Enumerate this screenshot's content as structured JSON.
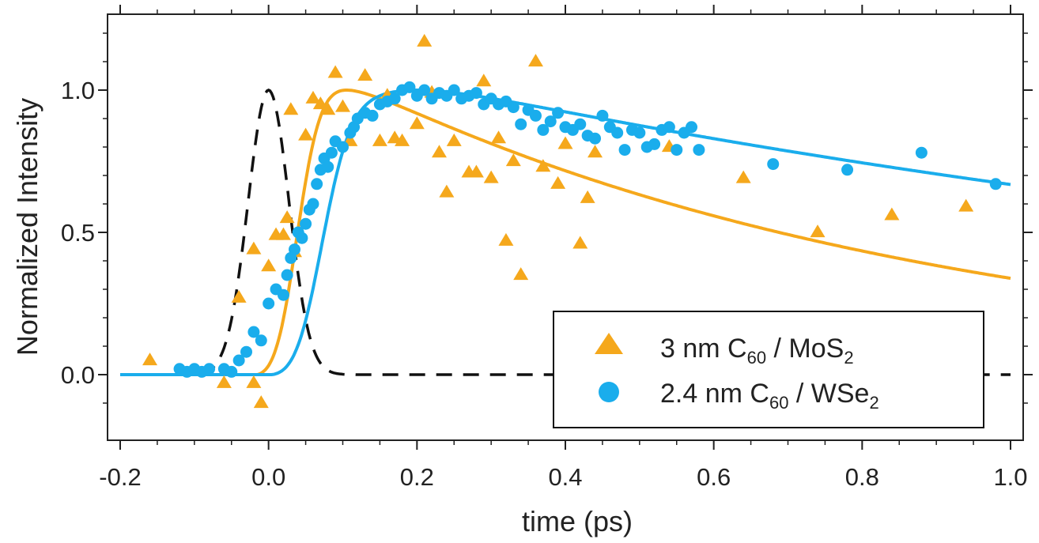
{
  "chart_data": {
    "type": "scatter",
    "xlabel": "time (ps)",
    "ylabel": "Normalized Intensity",
    "xlim": [
      -0.2,
      1.0
    ],
    "ylim": [
      -0.2,
      1.25
    ],
    "x_ticks": [
      -0.2,
      0.0,
      0.2,
      0.4,
      0.6,
      0.8,
      1.0
    ],
    "x_tick_labels": [
      "-0.2",
      "0.0",
      "0.2",
      "0.4",
      "0.6",
      "0.8",
      "1.0"
    ],
    "y_ticks": [
      0.0,
      0.5,
      1.0
    ],
    "y_tick_labels": [
      "0.0",
      "0.5",
      "1.0"
    ],
    "grid": false,
    "legend_position": "bottom-right",
    "colors": {
      "orange": "#F5A81C",
      "blue": "#1AADEC",
      "dashed": "#111111"
    },
    "series": [
      {
        "name": "3 nm C60 / MoS2",
        "legend": {
          "main": "3 nm C",
          "sub1": "60",
          "mid": " / MoS",
          "sub2": "2"
        },
        "marker": "triangle",
        "color": "#F5A81C",
        "x": [
          -0.16,
          -0.06,
          -0.04,
          -0.02,
          -0.02,
          -0.01,
          0.0,
          0.01,
          0.02,
          0.025,
          0.03,
          0.035,
          0.05,
          0.06,
          0.07,
          0.08,
          0.09,
          0.1,
          0.11,
          0.13,
          0.15,
          0.16,
          0.17,
          0.18,
          0.2,
          0.21,
          0.22,
          0.23,
          0.24,
          0.25,
          0.27,
          0.28,
          0.29,
          0.3,
          0.31,
          0.32,
          0.33,
          0.34,
          0.36,
          0.37,
          0.39,
          0.4,
          0.42,
          0.43,
          0.44,
          0.54,
          0.64,
          0.74,
          0.84,
          0.94
        ],
        "y": [
          0.05,
          -0.03,
          0.27,
          0.44,
          -0.03,
          -0.1,
          0.38,
          0.49,
          0.49,
          0.55,
          0.93,
          0.43,
          0.84,
          0.97,
          0.95,
          0.93,
          1.06,
          0.94,
          0.82,
          1.05,
          0.82,
          0.98,
          0.83,
          0.82,
          0.88,
          1.17,
          0.99,
          0.78,
          0.64,
          0.82,
          0.71,
          0.71,
          1.03,
          0.69,
          0.83,
          0.47,
          0.75,
          0.35,
          1.1,
          0.73,
          0.67,
          0.81,
          0.46,
          0.62,
          0.78,
          0.8,
          0.69,
          0.5,
          0.56,
          0.59
        ]
      },
      {
        "name": "2.4 nm C60 / WSe2",
        "legend": {
          "main": "2.4 nm C",
          "sub1": "60",
          "mid": " / WSe",
          "sub2": "2"
        },
        "marker": "circle",
        "color": "#1AADEC",
        "x": [
          -0.12,
          -0.11,
          -0.1,
          -0.09,
          -0.08,
          -0.06,
          -0.05,
          -0.04,
          -0.03,
          -0.02,
          -0.01,
          0.0,
          0.01,
          0.02,
          0.025,
          0.03,
          0.035,
          0.04,
          0.045,
          0.05,
          0.055,
          0.06,
          0.065,
          0.07,
          0.075,
          0.08,
          0.085,
          0.09,
          0.1,
          0.11,
          0.115,
          0.12,
          0.13,
          0.14,
          0.15,
          0.16,
          0.17,
          0.18,
          0.19,
          0.2,
          0.21,
          0.22,
          0.23,
          0.24,
          0.25,
          0.26,
          0.27,
          0.28,
          0.29,
          0.3,
          0.31,
          0.32,
          0.33,
          0.34,
          0.35,
          0.36,
          0.37,
          0.38,
          0.39,
          0.4,
          0.41,
          0.42,
          0.43,
          0.44,
          0.45,
          0.46,
          0.47,
          0.48,
          0.49,
          0.5,
          0.51,
          0.52,
          0.53,
          0.54,
          0.55,
          0.56,
          0.57,
          0.58,
          0.68,
          0.78,
          0.88,
          0.98
        ],
        "y": [
          0.02,
          0.01,
          0.02,
          0.01,
          0.02,
          0.02,
          0.01,
          0.05,
          0.08,
          0.15,
          0.12,
          0.25,
          0.3,
          0.28,
          0.35,
          0.41,
          0.44,
          0.5,
          0.48,
          0.53,
          0.58,
          0.6,
          0.67,
          0.72,
          0.76,
          0.73,
          0.78,
          0.82,
          0.8,
          0.85,
          0.87,
          0.9,
          0.92,
          0.91,
          0.95,
          0.96,
          0.97,
          1.0,
          1.01,
          0.98,
          1.0,
          0.97,
          0.99,
          0.98,
          1.0,
          0.97,
          0.98,
          0.99,
          0.95,
          0.97,
          0.95,
          0.96,
          0.94,
          0.88,
          0.93,
          0.91,
          0.86,
          0.89,
          0.92,
          0.87,
          0.86,
          0.88,
          0.84,
          0.83,
          0.91,
          0.87,
          0.85,
          0.79,
          0.86,
          0.85,
          0.8,
          0.81,
          0.86,
          0.87,
          0.79,
          0.85,
          0.87,
          0.79,
          0.74,
          0.72,
          0.78,
          0.67
        ]
      }
    ],
    "fit_curves": [
      {
        "series": "3 nm C60 / MoS2",
        "color": "#F5A81C",
        "t0": 0.035,
        "sigma": 0.025,
        "tau_rise": 0.035,
        "tau_decay": 0.8
      },
      {
        "series": "2.4 nm C60 / WSe2",
        "color": "#1AADEC",
        "t0": 0.065,
        "sigma": 0.03,
        "tau_rise": 0.055,
        "tau_decay": 1.85
      }
    ],
    "dashed_curve": {
      "color": "#111111",
      "center": 0.0,
      "fwhm": 0.065
    }
  }
}
